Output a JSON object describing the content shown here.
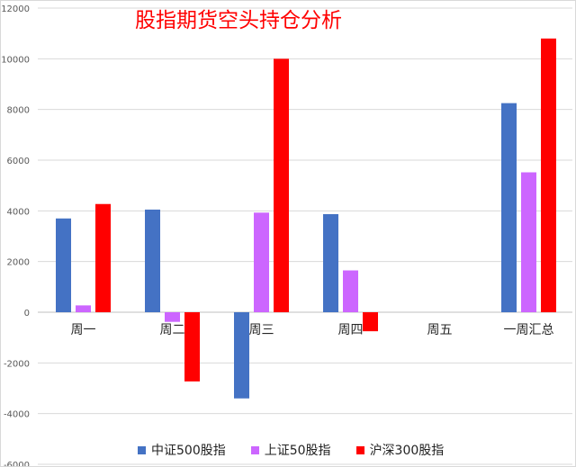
{
  "chart_data": {
    "type": "bar",
    "title": "股指期货空头持仓分析",
    "title_color": "#ff0000",
    "categories": [
      "周一",
      "周二",
      "周三",
      "周四",
      "周五",
      "一周汇总"
    ],
    "series": [
      {
        "name": "中证500股指",
        "color": "#4472c4",
        "values": [
          3700,
          4050,
          -3400,
          3870,
          0,
          8250
        ]
      },
      {
        "name": "上证50股指",
        "color": "#cc66ff",
        "values": [
          270,
          -380,
          3930,
          1650,
          0,
          5520
        ]
      },
      {
        "name": "沪深300股指",
        "color": "#ff0000",
        "values": [
          4270,
          -2730,
          10000,
          -750,
          0,
          10800
        ]
      }
    ],
    "ylim": [
      -6000,
      12000
    ],
    "yticks": [
      -6000,
      -4000,
      -2000,
      0,
      2000,
      4000,
      6000,
      8000,
      10000,
      12000
    ],
    "grid": true,
    "legend": "bottom"
  }
}
